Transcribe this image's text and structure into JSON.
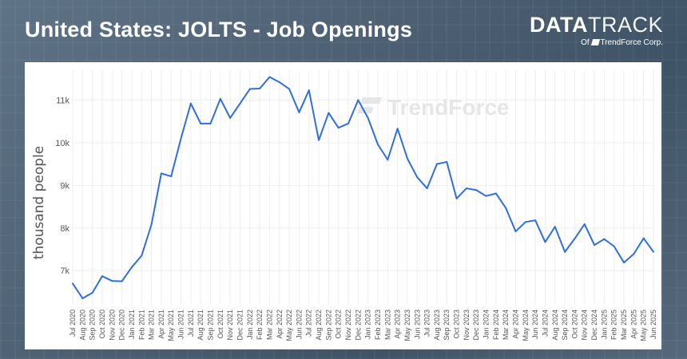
{
  "header": {
    "title": "United States: JOLTS - Job Openings",
    "logo_main_bold": "DATA",
    "logo_main_light": "TRACK",
    "logo_sub_prefix": "Of",
    "logo_sub_brand": "TrendForce Corp."
  },
  "watermark": "TrendForce",
  "colors": {
    "line": "#2f6fdc",
    "grid": "#eeeeee",
    "text": "#555555"
  },
  "chart_data": {
    "type": "line",
    "ylabel": "thousand people",
    "ylim": [
      6200,
      11700
    ],
    "yticks": [
      7000,
      8000,
      9000,
      10000,
      11000
    ],
    "ytick_labels": [
      "7k",
      "8k",
      "9k",
      "10k",
      "11k"
    ],
    "grid": true,
    "x": [
      "Jul 2020",
      "Aug 2020",
      "Sep 2020",
      "Oct 2020",
      "Nov 2020",
      "Dec 2020",
      "Jan 2021",
      "Feb 2021",
      "Mar 2021",
      "Apr 2021",
      "May 2021",
      "Jun 2021",
      "Jul 2021",
      "Aug 2021",
      "Sep 2021",
      "Oct 2021",
      "Nov 2021",
      "Dec 2021",
      "Jan 2022",
      "Feb 2022",
      "Mar 2022",
      "Apr 2022",
      "May 2022",
      "Jun 2022",
      "Jul 2022",
      "Aug 2022",
      "Sep 2022",
      "Oct 2022",
      "Nov 2022",
      "Dec 2022",
      "Jan 2023",
      "Feb 2023",
      "Mar 2023",
      "Apr 2023",
      "May 2023",
      "Jun 2023",
      "Jul 2023",
      "Aug 2023",
      "Sep 2023",
      "Oct 2023",
      "Nov 2023",
      "Dec 2023",
      "Jan 2024",
      "Feb 2024",
      "Mar 2024",
      "Apr 2024",
      "May 2024",
      "Jun 2024",
      "Jul 2024",
      "Aug 2024",
      "Sep 2024",
      "Oct 2024",
      "Nov 2024",
      "Dec 2024",
      "Jan 2025",
      "Feb 2025",
      "Mar 2025",
      "Apr 2025",
      "May 2025",
      "Jun 2025"
    ],
    "series": [
      {
        "values": [
          6700,
          6350,
          6480,
          6870,
          6760,
          6750,
          7080,
          7350,
          8080,
          9280,
          9210,
          10100,
          10920,
          10450,
          10450,
          11030,
          10580,
          10920,
          11260,
          11270,
          11540,
          11420,
          11260,
          10710,
          11230,
          10060,
          10700,
          10350,
          10450,
          11000,
          10580,
          9960,
          9600,
          10330,
          9630,
          9190,
          8930,
          9500,
          9550,
          8690,
          8930,
          8890,
          8750,
          8810,
          8470,
          7920,
          8140,
          8180,
          7670,
          8030,
          7440,
          7750,
          8090,
          7600,
          7740,
          7570,
          7190,
          7390,
          7760,
          7440
        ]
      }
    ]
  }
}
